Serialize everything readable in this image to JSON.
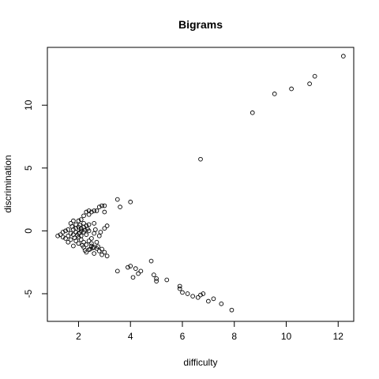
{
  "chart_data": {
    "type": "scatter",
    "title": "Bigrams",
    "xlabel": "difficulty",
    "ylabel": "discrimination",
    "xlim": [
      0.8,
      12.6
    ],
    "ylim": [
      -7.2,
      14.6
    ],
    "x_ticks": [
      2,
      4,
      6,
      8,
      10,
      12
    ],
    "x_tick_labels": [
      "2",
      "4",
      "6",
      "8",
      "10",
      "12"
    ],
    "y_ticks": [
      -5,
      0,
      5,
      10
    ],
    "y_tick_labels": [
      "-5",
      "0",
      "5",
      "10"
    ],
    "grid": false,
    "legend": "none",
    "marker": "open-circle",
    "points": [
      [
        12.2,
        13.9
      ],
      [
        11.1,
        12.3
      ],
      [
        10.9,
        11.7
      ],
      [
        10.2,
        11.3
      ],
      [
        9.55,
        10.9
      ],
      [
        8.7,
        9.4
      ],
      [
        6.7,
        5.7
      ],
      [
        3.5,
        2.5
      ],
      [
        3.6,
        1.9
      ],
      [
        4.0,
        2.3
      ],
      [
        2.9,
        2.0
      ],
      [
        3.0,
        2.0
      ],
      [
        2.8,
        1.9
      ],
      [
        3.0,
        1.5
      ],
      [
        2.7,
        1.6
      ],
      [
        2.6,
        1.6
      ],
      [
        2.5,
        1.5
      ],
      [
        2.4,
        1.6
      ],
      [
        2.3,
        1.5
      ],
      [
        2.4,
        1.3
      ],
      [
        2.2,
        1.2
      ],
      [
        2.1,
        0.9
      ],
      [
        2.0,
        0.8
      ],
      [
        1.8,
        0.8
      ],
      [
        1.7,
        0.6
      ],
      [
        2.6,
        0.6
      ],
      [
        3.1,
        0.4
      ],
      [
        3.0,
        0.2
      ],
      [
        2.4,
        0.5
      ],
      [
        2.3,
        0.4
      ],
      [
        2.2,
        0.3
      ],
      [
        2.1,
        0.2
      ],
      [
        1.9,
        0.2
      ],
      [
        1.8,
        0.1
      ],
      [
        1.6,
        0.1
      ],
      [
        1.5,
        0.0
      ],
      [
        1.4,
        -0.1
      ],
      [
        1.3,
        -0.3
      ],
      [
        1.2,
        -0.4
      ],
      [
        1.4,
        -0.5
      ],
      [
        1.6,
        -0.4
      ],
      [
        1.8,
        -0.3
      ],
      [
        2.0,
        -0.2
      ],
      [
        2.2,
        -0.1
      ],
      [
        2.4,
        0.0
      ],
      [
        2.6,
        -0.2
      ],
      [
        2.8,
        -0.4
      ],
      [
        2.0,
        -0.5
      ],
      [
        2.1,
        -0.7
      ],
      [
        2.2,
        -0.9
      ],
      [
        2.3,
        -1.1
      ],
      [
        2.5,
        -1.2
      ],
      [
        2.7,
        -1.4
      ],
      [
        2.8,
        -1.6
      ],
      [
        2.6,
        -1.8
      ],
      [
        2.9,
        -1.9
      ],
      [
        3.0,
        -1.7
      ],
      [
        3.1,
        -2.0
      ],
      [
        2.4,
        -1.5
      ],
      [
        2.3,
        -1.7
      ],
      [
        2.2,
        -1.3
      ],
      [
        2.0,
        -1.0
      ],
      [
        1.9,
        -0.8
      ],
      [
        1.7,
        -0.7
      ],
      [
        1.6,
        -0.9
      ],
      [
        1.8,
        -1.2
      ],
      [
        1.5,
        -0.6
      ],
      [
        1.9,
        -0.1
      ],
      [
        2.1,
        0.0
      ],
      [
        2.3,
        -0.3
      ],
      [
        2.5,
        -0.6
      ],
      [
        2.7,
        -0.9
      ],
      [
        1.7,
        -0.2
      ],
      [
        2.0,
        0.3
      ],
      [
        2.2,
        0.6
      ],
      [
        2.5,
        -1.0
      ],
      [
        3.5,
        -3.2
      ],
      [
        3.9,
        -2.9
      ],
      [
        4.0,
        -2.8
      ],
      [
        4.2,
        -3.0
      ],
      [
        4.1,
        -3.7
      ],
      [
        4.3,
        -3.4
      ],
      [
        4.4,
        -3.2
      ],
      [
        4.8,
        -2.4
      ],
      [
        4.9,
        -3.5
      ],
      [
        5.0,
        -3.8
      ],
      [
        5.0,
        -4.0
      ],
      [
        5.4,
        -3.9
      ],
      [
        5.9,
        -4.4
      ],
      [
        5.9,
        -4.6
      ],
      [
        6.0,
        -4.9
      ],
      [
        6.2,
        -5.0
      ],
      [
        6.4,
        -5.2
      ],
      [
        6.7,
        -5.1
      ],
      [
        6.8,
        -5.0
      ],
      [
        6.6,
        -5.3
      ],
      [
        7.0,
        -5.6
      ],
      [
        7.2,
        -5.4
      ],
      [
        7.5,
        -5.8
      ],
      [
        7.9,
        -6.3
      ],
      [
        2.1,
        -0.4
      ],
      [
        2.4,
        -0.8
      ],
      [
        2.6,
        -1.3
      ],
      [
        1.9,
        0.5
      ],
      [
        2.05,
        -0.15
      ],
      [
        2.35,
        0.15
      ],
      [
        1.85,
        -0.55
      ],
      [
        2.15,
        -1.15
      ],
      [
        2.45,
        -1.45
      ],
      [
        2.25,
        -1.55
      ],
      [
        2.55,
        -1.35
      ],
      [
        2.75,
        -1.25
      ],
      [
        2.9,
        -1.45
      ],
      [
        2.05,
        0.45
      ],
      [
        2.25,
        0.05
      ],
      [
        1.95,
        -0.35
      ],
      [
        1.75,
        0.35
      ],
      [
        2.65,
        0.1
      ],
      [
        2.85,
        -0.1
      ]
    ]
  }
}
